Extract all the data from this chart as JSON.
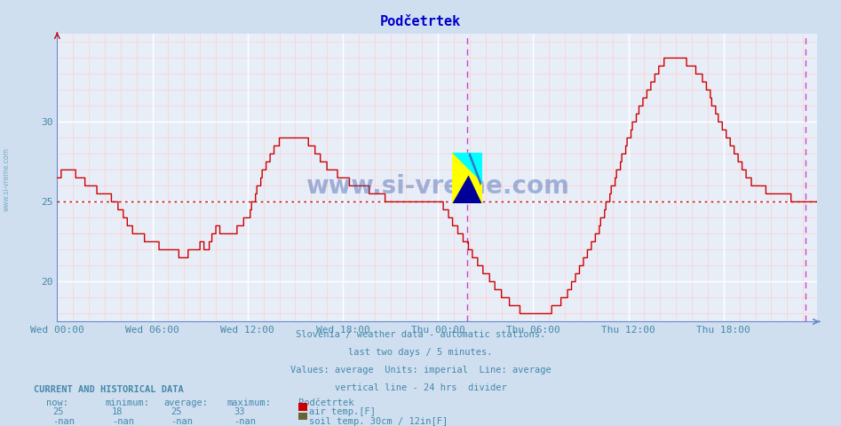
{
  "title": "Podčetrtek",
  "title_color": "#0000cc",
  "bg_color": "#d0dff0",
  "plot_bg_color": "#e8eef8",
  "grid_color_major": "#ffffff",
  "grid_color_minor": "#ffcccc",
  "line_color": "#cc0000",
  "avg_line_color": "#cc0000",
  "avg_line_value": 25,
  "divider_color": "#cc44cc",
  "y_min": 17.5,
  "y_max": 35.5,
  "y_ticks": [
    20,
    25,
    30
  ],
  "x_ticks_labels": [
    "Wed 00:00",
    "Wed 06:00",
    "Wed 12:00",
    "Wed 18:00",
    "Thu 00:00",
    "Thu 06:00",
    "Thu 12:00",
    "Thu 18:00"
  ],
  "x_ticks_positions": [
    0,
    72,
    144,
    216,
    288,
    360,
    432,
    504
  ],
  "total_points": 576,
  "subtitle_lines": [
    "Slovenia / weather data - automatic stations.",
    "last two days / 5 minutes.",
    "Values: average  Units: imperial  Line: average",
    "vertical line - 24 hrs  divider"
  ],
  "subtitle_color": "#4488aa",
  "footer_title": "CURRENT AND HISTORICAL DATA",
  "footer_color": "#4488aa",
  "footer_headers": [
    "now:",
    "minimum:",
    "average:",
    "maximum:",
    "Podčetrtek"
  ],
  "footer_values_line1": [
    "25",
    "18",
    "25",
    "33",
    "air temp.[F]"
  ],
  "footer_values_line2": [
    "-nan",
    "-nan",
    "-nan",
    "-nan",
    "soil temp. 30cm / 12in[F]"
  ],
  "legend_color_air": "#cc0000",
  "legend_color_soil": "#666633",
  "watermark": "www.si-vreme.com",
  "watermark_color": "#3355aa"
}
